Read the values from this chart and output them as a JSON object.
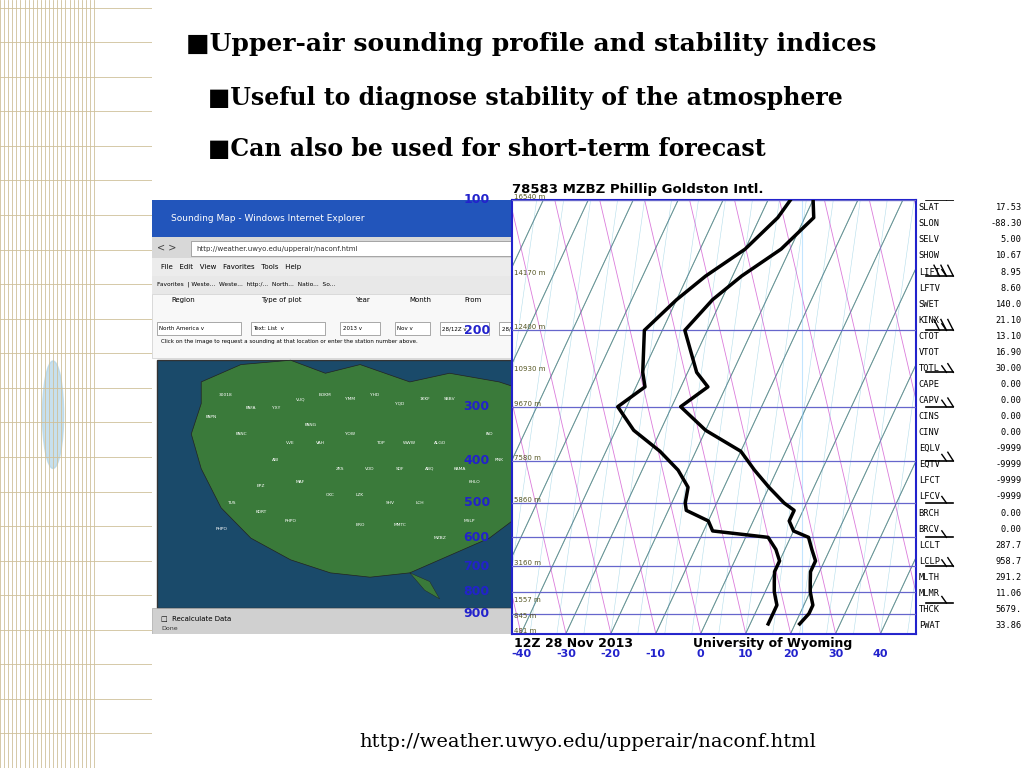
{
  "background_color": "#ffffff",
  "bullet": "■",
  "title_line1": "Upper-air sounding profile and stability indices",
  "title_line2": "Useful to diagnose stability of the atmosphere",
  "title_line3": "Can also be used for short-term forecast",
  "url_text": "http://weather.uwyo.edu/upperair/naconf.html",
  "sounding_title": "78583 MZBZ Phillip Goldston Intl.",
  "sounding_date": "12Z 28 Nov 2013",
  "sounding_credit": "University of Wyoming",
  "pressure_labels": [
    100,
    200,
    300,
    400,
    500,
    600,
    700,
    800,
    900
  ],
  "temp_line": [
    [
      -20,
      100
    ],
    [
      -18,
      110
    ],
    [
      -22,
      130
    ],
    [
      -28,
      150
    ],
    [
      -32,
      170
    ],
    [
      -35,
      200
    ],
    [
      -28,
      250
    ],
    [
      -24,
      270
    ],
    [
      -28,
      300
    ],
    [
      -20,
      340
    ],
    [
      -10,
      380
    ],
    [
      -5,
      420
    ],
    [
      0,
      460
    ],
    [
      5,
      500
    ],
    [
      8,
      520
    ],
    [
      8,
      550
    ],
    [
      10,
      580
    ],
    [
      14,
      600
    ],
    [
      16,
      640
    ],
    [
      18,
      680
    ],
    [
      18,
      720
    ],
    [
      19,
      760
    ],
    [
      20,
      800
    ],
    [
      21,
      830
    ],
    [
      22,
      860
    ],
    [
      22,
      900
    ],
    [
      21,
      950
    ]
  ],
  "dewp_line": [
    [
      -25,
      100
    ],
    [
      -26,
      110
    ],
    [
      -30,
      130
    ],
    [
      -36,
      150
    ],
    [
      -40,
      170
    ],
    [
      -44,
      200
    ],
    [
      -40,
      250
    ],
    [
      -38,
      270
    ],
    [
      -42,
      300
    ],
    [
      -36,
      340
    ],
    [
      -28,
      380
    ],
    [
      -22,
      420
    ],
    [
      -18,
      460
    ],
    [
      -17,
      500
    ],
    [
      -16,
      520
    ],
    [
      -10,
      550
    ],
    [
      -8,
      580
    ],
    [
      5,
      600
    ],
    [
      8,
      640
    ],
    [
      10,
      680
    ],
    [
      10,
      720
    ],
    [
      11,
      760
    ],
    [
      12,
      800
    ],
    [
      13,
      830
    ],
    [
      14,
      860
    ],
    [
      14,
      900
    ],
    [
      14,
      950
    ]
  ],
  "stability_indices": [
    [
      "SLAT",
      "17.53"
    ],
    [
      "SLON",
      "-88.30"
    ],
    [
      "SELV",
      "5.00"
    ],
    [
      "SHOW",
      "10.67"
    ],
    [
      "LIFT",
      "8.95"
    ],
    [
      "LFTV",
      "8.60"
    ],
    [
      "SWET",
      "140.0"
    ],
    [
      "KINX",
      "21.10"
    ],
    [
      "CTOT",
      "13.10"
    ],
    [
      "VTOT",
      "16.90"
    ],
    [
      "TOTL",
      "30.00"
    ],
    [
      "CAPE",
      "0.00"
    ],
    [
      "CAPV",
      "0.00"
    ],
    [
      "CINS",
      "0.00"
    ],
    [
      "CINV",
      "0.00"
    ],
    [
      "EQLV",
      "-9999"
    ],
    [
      "EQTV",
      "-9999"
    ],
    [
      "LFCT",
      "-9999"
    ],
    [
      "LFCV",
      "-9999"
    ],
    [
      "BRCH",
      "0.00"
    ],
    [
      "BRCV",
      "0.00"
    ],
    [
      "LCLT",
      "287.7"
    ],
    [
      "LCLP",
      "958.7"
    ],
    [
      "MLTH",
      "291.2"
    ],
    [
      "MLMR",
      "11.06"
    ],
    [
      "THCK",
      "5679."
    ],
    [
      "PWAT",
      "33.86"
    ]
  ],
  "x_ticks": [
    -40,
    -30,
    -20,
    -10,
    0,
    10,
    20,
    30,
    40
  ],
  "xlim": [
    -42,
    48
  ],
  "grid_color_h": "#6666cc",
  "grid_color_diag_green": "#44aa44",
  "grid_color_diag_pink": "#cc44cc",
  "grid_color_diag_blue": "#4488cc",
  "height_info": [
    [
      "16540 m",
      100
    ],
    [
      "14170 m",
      150
    ],
    [
      "12400 m",
      200
    ],
    [
      "10930 m",
      250
    ],
    [
      "9670 m",
      300
    ],
    [
      "7580 m",
      400
    ],
    [
      "5860 m",
      500
    ],
    [
      "3160 m",
      700
    ],
    [
      "1557 m",
      850
    ],
    [
      "845 m",
      925
    ],
    [
      "481 m",
      1000
    ]
  ]
}
